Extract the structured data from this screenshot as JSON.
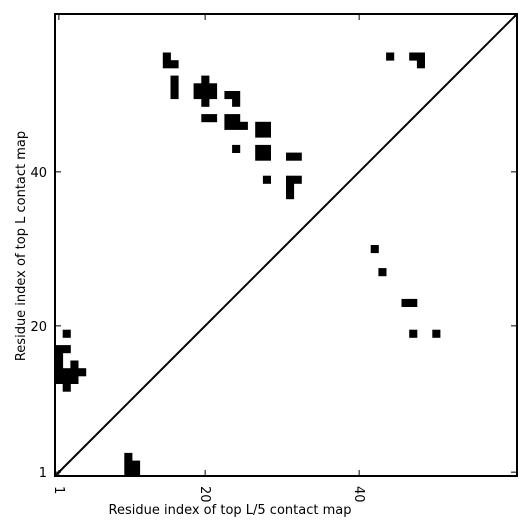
{
  "chart_data": {
    "type": "heatmap",
    "title": "",
    "xlabel": "Residue index of top L/5 contact map",
    "ylabel": "Residue index of top L contact map",
    "xlim": [
      0.5,
      60.5
    ],
    "ylim": [
      0.5,
      60.5
    ],
    "x_ticks": [
      1,
      20,
      40
    ],
    "y_ticks": [
      1,
      20,
      40
    ],
    "diagonal": true,
    "grid": false,
    "lower_triangle_contacts": [
      [
        1,
        13
      ],
      [
        1,
        14
      ],
      [
        1,
        15
      ],
      [
        1,
        16
      ],
      [
        1,
        17
      ],
      [
        2,
        12
      ],
      [
        2,
        13
      ],
      [
        2,
        14
      ],
      [
        2,
        17
      ],
      [
        2,
        19
      ],
      [
        3,
        13
      ],
      [
        3,
        14
      ],
      [
        3,
        15
      ],
      [
        4,
        14
      ],
      [
        10,
        1
      ],
      [
        10,
        2
      ],
      [
        10,
        3
      ],
      [
        11,
        1
      ],
      [
        11,
        2
      ],
      [
        42,
        30
      ],
      [
        43,
        27
      ],
      [
        46,
        23
      ],
      [
        47,
        23
      ],
      [
        47,
        19
      ],
      [
        50,
        19
      ]
    ],
    "upper_triangle_contacts": [
      [
        15,
        54
      ],
      [
        15,
        55
      ],
      [
        16,
        50
      ],
      [
        16,
        51
      ],
      [
        16,
        52
      ],
      [
        16,
        54
      ],
      [
        19,
        50
      ],
      [
        19,
        51
      ],
      [
        20,
        47
      ],
      [
        20,
        49
      ],
      [
        20,
        50
      ],
      [
        20,
        51
      ],
      [
        20,
        52
      ],
      [
        21,
        47
      ],
      [
        21,
        50
      ],
      [
        21,
        51
      ],
      [
        23,
        46
      ],
      [
        23,
        47
      ],
      [
        23,
        50
      ],
      [
        24,
        43
      ],
      [
        24,
        46
      ],
      [
        24,
        47
      ],
      [
        24,
        49
      ],
      [
        24,
        50
      ],
      [
        25,
        46
      ],
      [
        27,
        42
      ],
      [
        27,
        43
      ],
      [
        27,
        45
      ],
      [
        27,
        46
      ],
      [
        28,
        42
      ],
      [
        28,
        43
      ],
      [
        28,
        45
      ],
      [
        28,
        46
      ],
      [
        28,
        39
      ],
      [
        31,
        37
      ],
      [
        31,
        38
      ],
      [
        31,
        39
      ],
      [
        31,
        42
      ],
      [
        32,
        39
      ],
      [
        32,
        42
      ],
      [
        44,
        55
      ],
      [
        47,
        55
      ],
      [
        48,
        54
      ],
      [
        48,
        55
      ]
    ]
  }
}
